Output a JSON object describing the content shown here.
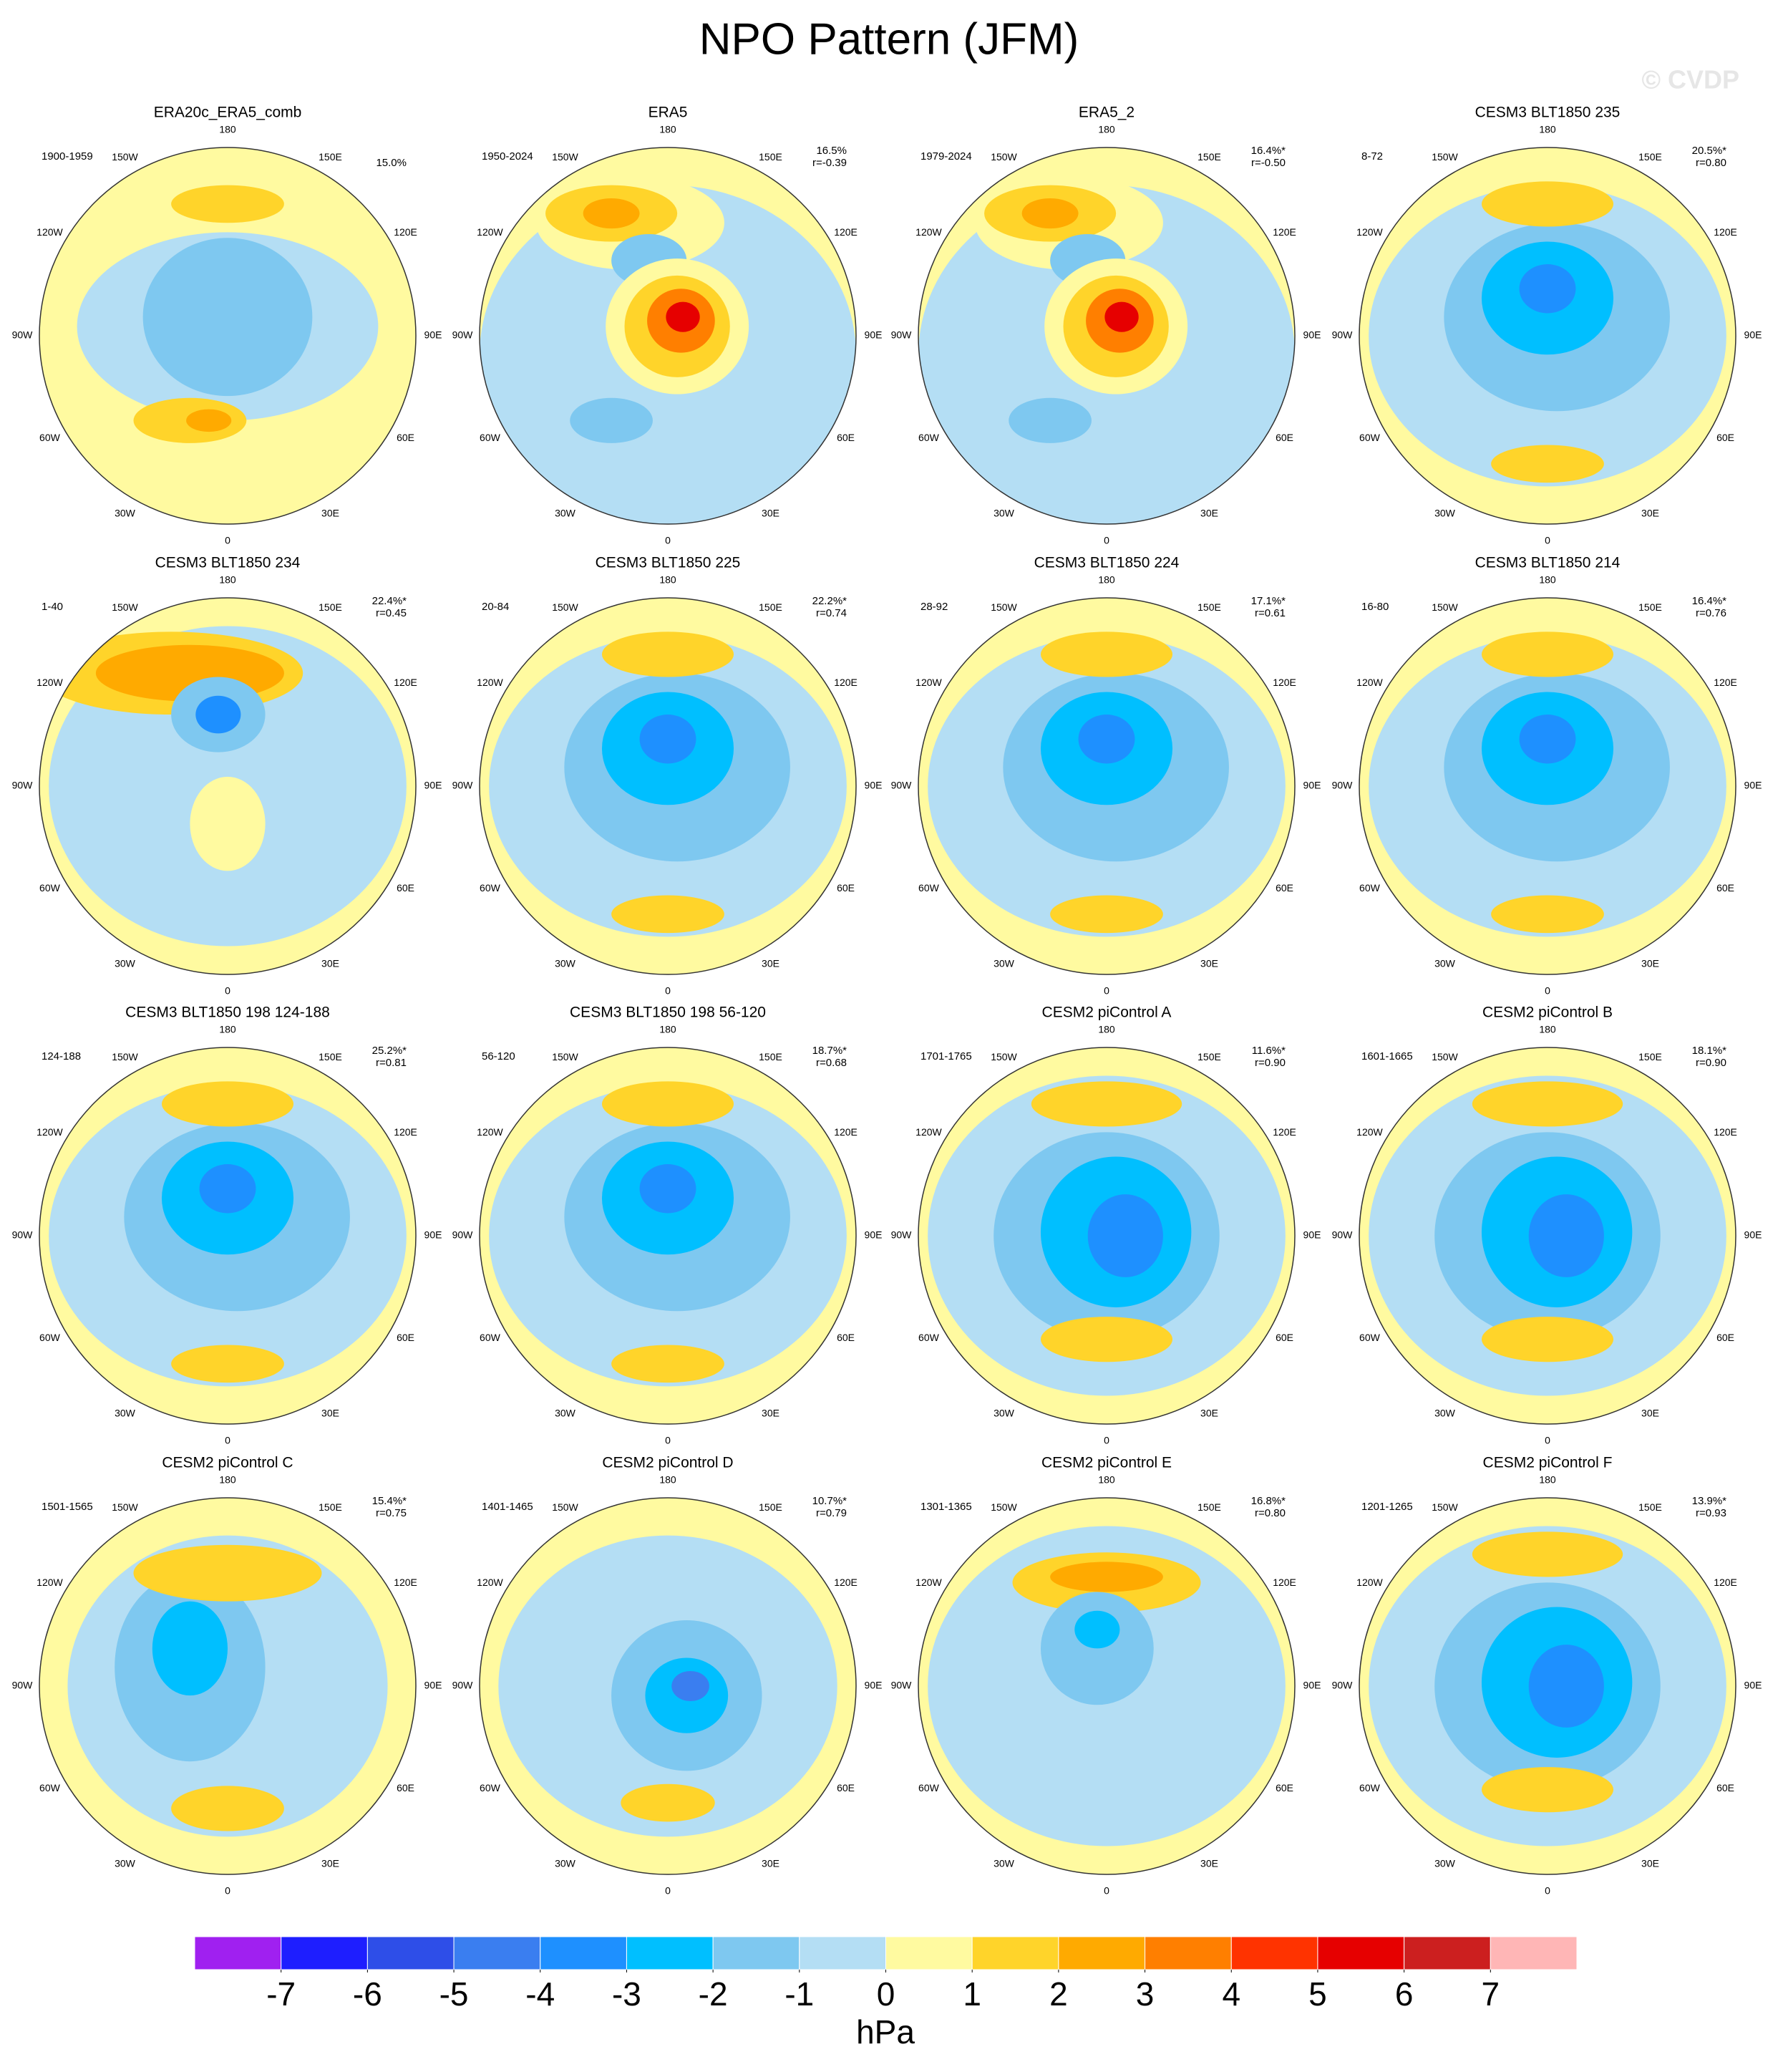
{
  "title": "NPO Pattern (JFM)",
  "watermark": "© CVDP",
  "lon_labels": [
    "180",
    "150E",
    "120E",
    "90E",
    "60E",
    "30E",
    "0",
    "30W",
    "60W",
    "90W",
    "120W",
    "150W"
  ],
  "panels": [
    {
      "title": "ERA20c_ERA5_comb",
      "period": "1900-1959",
      "variance": "15.0%"
    },
    {
      "title": "ERA5",
      "period": "1950-2024",
      "variance": "16.5%",
      "corr": "r=-0.39"
    },
    {
      "title": "ERA5_2",
      "period": "1979-2024",
      "variance": "16.4%*",
      "corr": "r=-0.50"
    },
    {
      "title": "CESM3 BLT1850 235",
      "period": "8-72",
      "variance": "20.5%*",
      "corr": "r=0.80"
    },
    {
      "title": "CESM3 BLT1850 234",
      "period": "1-40",
      "variance": "22.4%*",
      "corr": "r=0.45"
    },
    {
      "title": "CESM3 BLT1850 225",
      "period": "20-84",
      "variance": "22.2%*",
      "corr": "r=0.74"
    },
    {
      "title": "CESM3 BLT1850 224",
      "period": "28-92",
      "variance": "17.1%*",
      "corr": "r=0.61"
    },
    {
      "title": "CESM3 BLT1850 214",
      "period": "16-80",
      "variance": "16.4%*",
      "corr": "r=0.76"
    },
    {
      "title": "CESM3 BLT1850 198 124-188",
      "period": "124-188",
      "variance": "25.2%*",
      "corr": "r=0.81"
    },
    {
      "title": "CESM3 BLT1850 198 56-120",
      "period": "56-120",
      "variance": "18.7%*",
      "corr": "r=0.68"
    },
    {
      "title": "CESM2 piControl A",
      "period": "1701-1765",
      "variance": "11.6%*",
      "corr": "r=0.90"
    },
    {
      "title": "CESM2 piControl B",
      "period": "1601-1665",
      "variance": "18.1%*",
      "corr": "r=0.90"
    },
    {
      "title": "CESM2 piControl C",
      "period": "1501-1565",
      "variance": "15.4%*",
      "corr": "r=0.75"
    },
    {
      "title": "CESM2 piControl D",
      "period": "1401-1465",
      "variance": "10.7%*",
      "corr": "r=0.79"
    },
    {
      "title": "CESM2 piControl E",
      "period": "1301-1365",
      "variance": "16.8%*",
      "corr": "r=0.80"
    },
    {
      "title": "CESM2 piControl F",
      "period": "1201-1265",
      "variance": "13.9%*",
      "corr": "r=0.93"
    }
  ],
  "colorbar": {
    "colors": [
      "#a020f0",
      "#1e1eff",
      "#2e4ee8",
      "#3a7ef0",
      "#1e90ff",
      "#00bfff",
      "#7ec8f0",
      "#b4def4",
      "#fffaa0",
      "#ffd42a",
      "#ffaa00",
      "#ff7f00",
      "#ff3300",
      "#e60000",
      "#cc1f1f",
      "#ffb6b6"
    ],
    "ticks": [
      -7,
      -6,
      -5,
      -4,
      -3,
      -2,
      -1,
      0,
      1,
      2,
      3,
      4,
      5,
      6,
      7
    ],
    "unit": "hPa"
  }
}
